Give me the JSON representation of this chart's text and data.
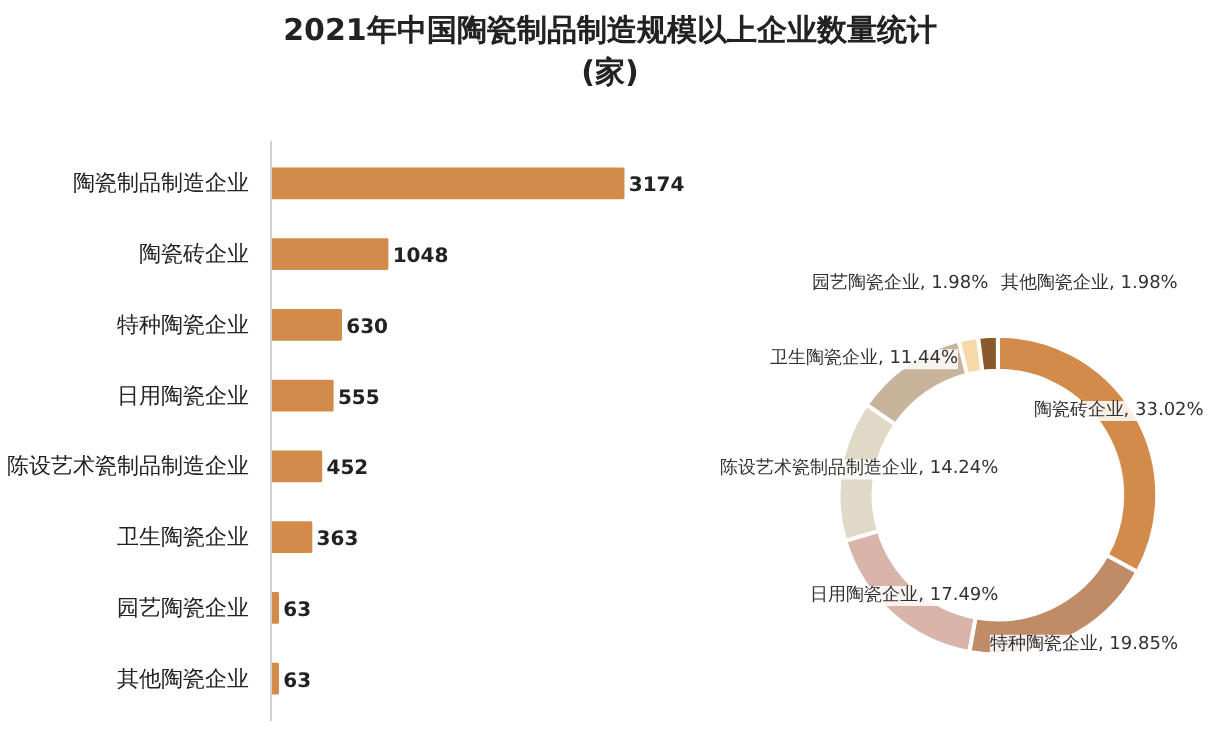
{
  "chart_data": [
    {
      "type": "bar",
      "orientation": "horizontal",
      "title": "2021年中国陶瓷制品制造规模以上企业数量统计(家)",
      "categories": [
        "陶瓷制品制造企业",
        "陶瓷砖企业",
        "特种陶瓷企业",
        "日用陶瓷企业",
        "陈设艺术瓷制品制造企业",
        "卫生陶瓷企业",
        "园艺陶瓷企业",
        "其他陶瓷企业"
      ],
      "values": [
        3174,
        1048,
        630,
        555,
        452,
        363,
        63,
        63
      ],
      "color": "#d38b4b",
      "data_labels": true,
      "grid": false,
      "legend": false
    },
    {
      "type": "donut",
      "categories": [
        "陶瓷砖企业",
        "特种陶瓷企业",
        "日用陶瓷企业",
        "陈设艺术瓷制品制造企业",
        "卫生陶瓷企业",
        "园艺陶瓷企业",
        "其他陶瓷企业"
      ],
      "values": [
        33.02,
        19.85,
        17.49,
        14.24,
        11.44,
        1.98,
        1.98
      ],
      "value_labels": [
        "33.02%",
        "19.85%",
        "17.49%",
        "14.24%",
        "11.44%",
        "1.98%",
        "1.98%"
      ],
      "colors": [
        "#d38b4b",
        "#c08c68",
        "#d8b5a8",
        "#e0d9c8",
        "#c8b49a",
        "#f5d9a8",
        "#8b5a2b"
      ],
      "legend": false
    }
  ]
}
